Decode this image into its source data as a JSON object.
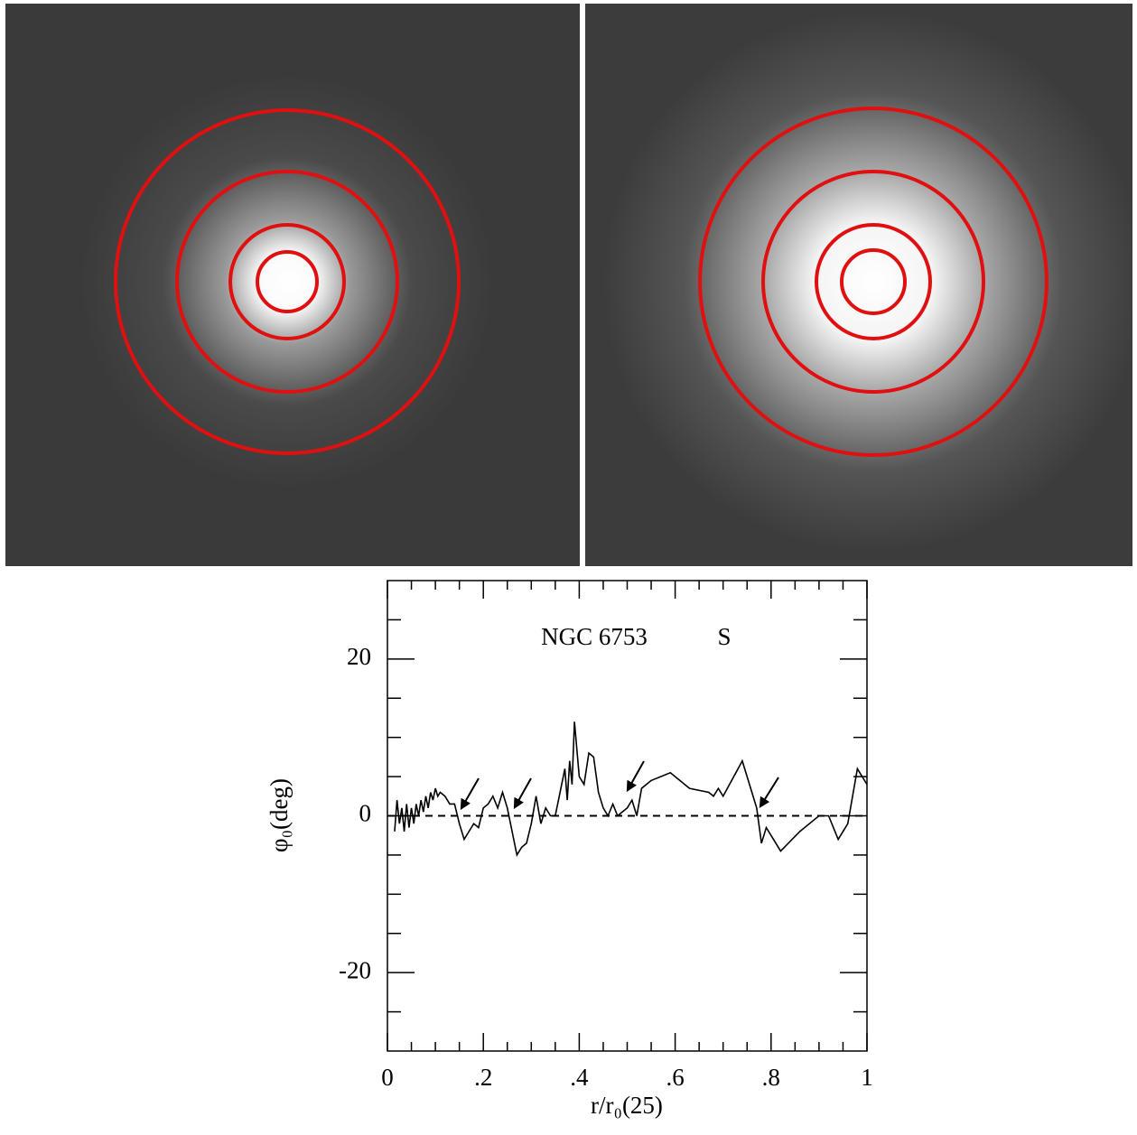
{
  "chart_data": {
    "type": "line",
    "title": "NGC 6753",
    "subtitle": "S",
    "x_label": "r/r₀(25)",
    "y_label": "φ₀(deg)",
    "xlim": [
      0,
      1
    ],
    "ylim": [
      -30,
      30
    ],
    "xticks": [
      0,
      {
        "value": 0.2,
        "label": ".2"
      },
      {
        "value": 0.4,
        "label": ".4"
      },
      {
        "value": 0.6,
        "label": ".6"
      },
      {
        "value": 0.8,
        "label": ".8"
      },
      1
    ],
    "yticks": [
      -20,
      0,
      20
    ],
    "xminorticks": [
      0.05,
      0.1,
      0.15,
      0.25,
      0.3,
      0.35,
      0.45,
      0.5,
      0.55,
      0.65,
      0.7,
      0.75,
      0.85,
      0.9,
      0.95
    ],
    "yminorticks": [
      -25,
      -15,
      -10,
      -5,
      5,
      10,
      15,
      25
    ],
    "hline": 0,
    "x": [
      0.015,
      0.02,
      0.025,
      0.03,
      0.035,
      0.04,
      0.045,
      0.05,
      0.055,
      0.06,
      0.065,
      0.07,
      0.075,
      0.08,
      0.085,
      0.09,
      0.095,
      0.1,
      0.105,
      0.11,
      0.12,
      0.13,
      0.14,
      0.15,
      0.16,
      0.17,
      0.18,
      0.19,
      0.2,
      0.21,
      0.22,
      0.23,
      0.24,
      0.25,
      0.26,
      0.27,
      0.28,
      0.29,
      0.3,
      0.31,
      0.32,
      0.33,
      0.34,
      0.35,
      0.36,
      0.37,
      0.375,
      0.38,
      0.385,
      0.39,
      0.4,
      0.41,
      0.42,
      0.43,
      0.44,
      0.45,
      0.46,
      0.47,
      0.48,
      0.49,
      0.5,
      0.51,
      0.52,
      0.53,
      0.55,
      0.59,
      0.63,
      0.67,
      0.68,
      0.69,
      0.7,
      0.74,
      0.77,
      0.78,
      0.79,
      0.82,
      0.86,
      0.9,
      0.92,
      0.94,
      0.96,
      0.98,
      1
    ],
    "series": [
      {
        "name": "phi0",
        "color": "#000000",
        "values": [
          -2,
          2,
          -1,
          1,
          -2,
          1.5,
          -1.5,
          1,
          -1,
          1.5,
          0,
          2,
          0.5,
          2.5,
          1,
          3,
          2,
          3.5,
          2.5,
          3,
          2.5,
          1.5,
          1.5,
          -1,
          -3,
          -2,
          -1,
          -1.5,
          1,
          1.5,
          2.5,
          1,
          3,
          1,
          -2,
          -5,
          -4,
          -3.5,
          -1,
          2.5,
          -1,
          1,
          0,
          0,
          3,
          6,
          2,
          7,
          4,
          12,
          5,
          4,
          8,
          7.5,
          3,
          1,
          0,
          1.5,
          0,
          0.5,
          1,
          2,
          0,
          3.5,
          4.5,
          5.5,
          3.5,
          3,
          2.5,
          3.5,
          2.5,
          7,
          1,
          -3.5,
          -1.5,
          -4.5,
          -2,
          0,
          0,
          -3,
          -1,
          6,
          4
        ]
      }
    ]
  }
}
